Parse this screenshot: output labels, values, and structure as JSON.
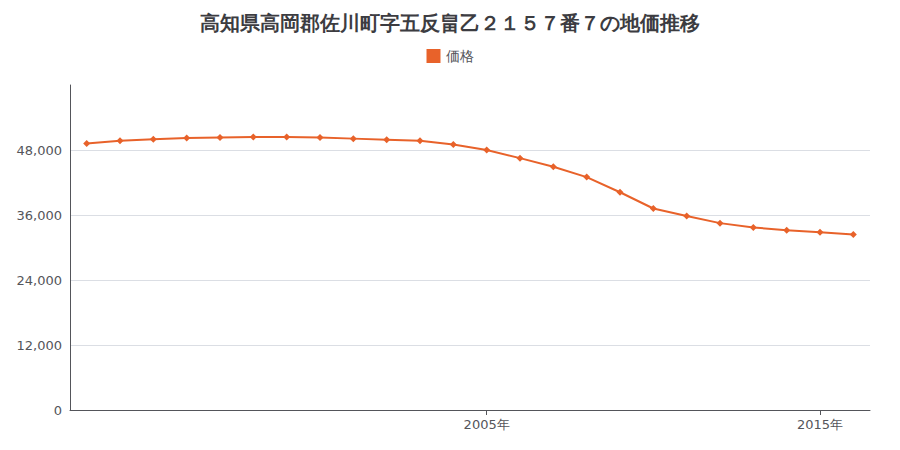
{
  "chart_data": {
    "type": "line",
    "title": "高知県高岡郡佐川町字五反畠乙２１５７番７の地価推移",
    "x": [
      1993,
      1994,
      1995,
      1996,
      1997,
      1998,
      1999,
      2000,
      2001,
      2002,
      2003,
      2004,
      2005,
      2006,
      2007,
      2008,
      2009,
      2010,
      2011,
      2012,
      2013,
      2014,
      2015,
      2016
    ],
    "series": [
      {
        "name": "価格",
        "color": "#e8622a",
        "marker": "diamond",
        "values": [
          49200,
          49700,
          50000,
          50200,
          50300,
          50400,
          50400,
          50300,
          50100,
          49900,
          49700,
          49000,
          48000,
          46500,
          44900,
          43000,
          40200,
          37200,
          35800,
          34500,
          33700,
          33200,
          32800,
          32400
        ]
      }
    ],
    "xlim": [
      1992.5,
      2016.5
    ],
    "xticks": [
      {
        "value": 2005,
        "label": "2005年"
      },
      {
        "value": 2015,
        "label": "2015年"
      }
    ],
    "ylim": [
      0,
      60000
    ],
    "yticks": [
      0,
      {
        "value": 12000,
        "label": "12,000"
      },
      {
        "value": 24000,
        "label": "24,000"
      },
      {
        "value": 36000,
        "label": "36,000"
      },
      {
        "value": 48000,
        "label": "48,000"
      }
    ],
    "grid": "y",
    "legend": "top"
  }
}
